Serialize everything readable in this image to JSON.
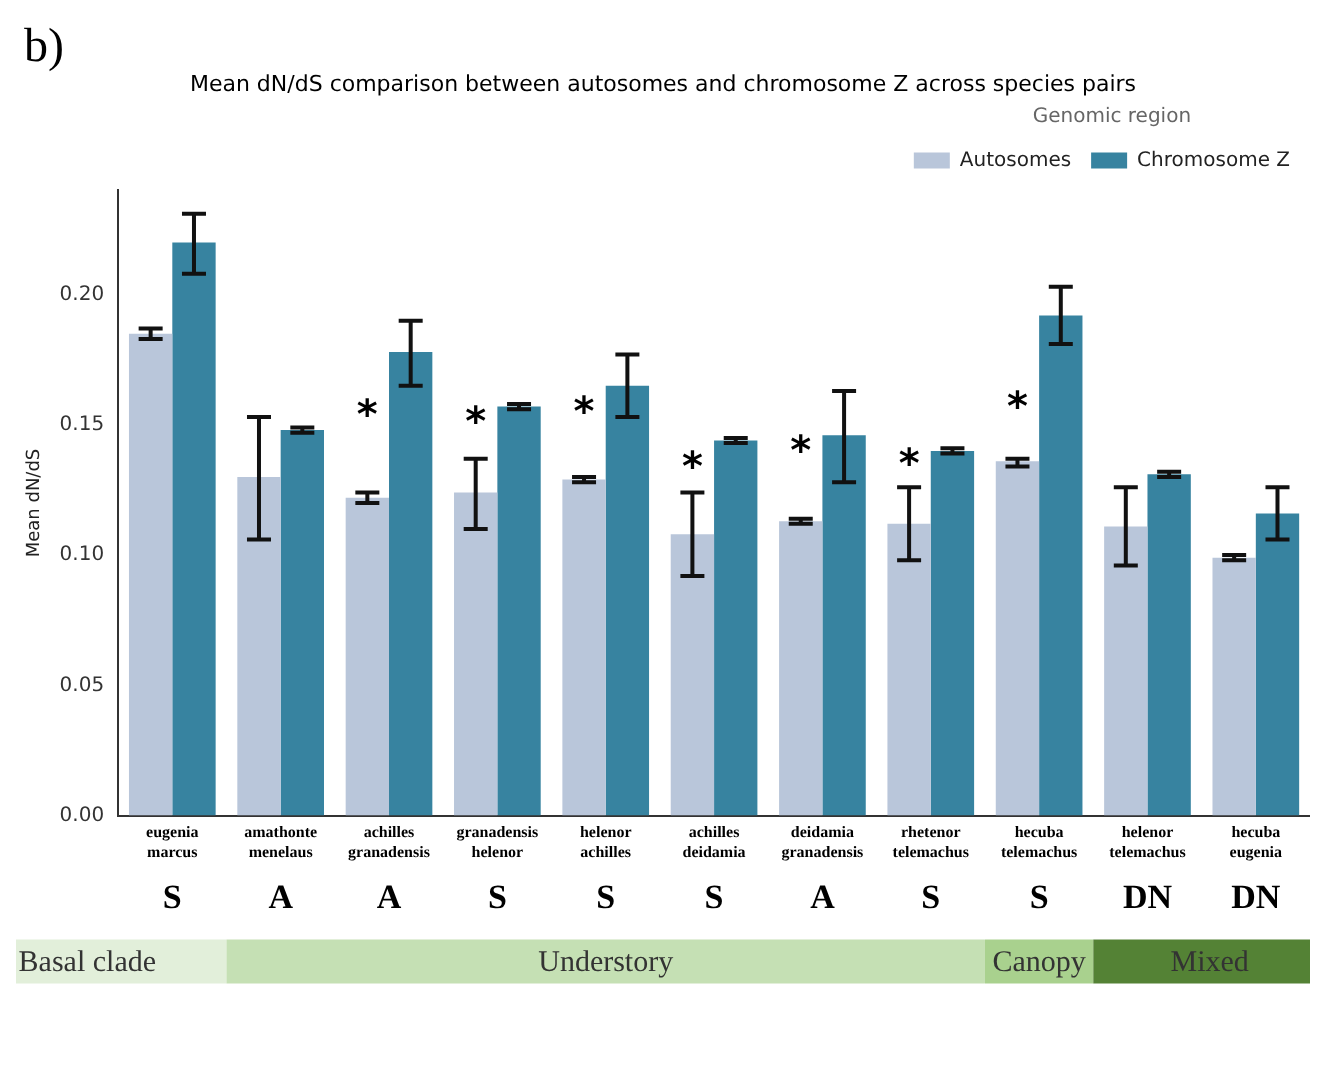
{
  "chart_data": {
    "type": "bar",
    "title": "Mean dN/dS comparison between autosomes and chromosome Z across species pairs",
    "ylabel": "Mean dN/dS",
    "legend_title": "Genomic region",
    "categories": [
      "eugenia marcus",
      "amathonte menelaus",
      "achilles granadensis",
      "granadensis helenor",
      "helenor achilles",
      "achilles deidamia",
      "deidamia granadensis",
      "rhetenor telemachus",
      "hecuba telemachus",
      "helenor telemachus",
      "hecuba eugenia"
    ],
    "series": [
      {
        "name": "Autosomes",
        "color": "#b9c6da",
        "values": [
          0.185,
          0.13,
          0.122,
          0.124,
          0.129,
          0.108,
          0.113,
          0.112,
          0.136,
          0.111,
          0.099
        ],
        "errors": [
          [
            0.183,
            0.187
          ],
          [
            0.106,
            0.153
          ],
          [
            0.12,
            0.124
          ],
          [
            0.11,
            0.137
          ],
          [
            0.128,
            0.13
          ],
          [
            0.092,
            0.124
          ],
          [
            0.112,
            0.114
          ],
          [
            0.098,
            0.126
          ],
          [
            0.134,
            0.137
          ],
          [
            0.096,
            0.126
          ],
          [
            0.098,
            0.1
          ]
        ]
      },
      {
        "name": "Chromosome Z",
        "color": "#3783a0",
        "values": [
          0.22,
          0.148,
          0.178,
          0.157,
          0.165,
          0.144,
          0.146,
          0.14,
          0.192,
          0.131,
          0.116
        ],
        "errors": [
          [
            0.208,
            0.231
          ],
          [
            0.147,
            0.149
          ],
          [
            0.165,
            0.19
          ],
          [
            0.156,
            0.158
          ],
          [
            0.153,
            0.177
          ],
          [
            0.143,
            0.145
          ],
          [
            0.128,
            0.163
          ],
          [
            0.139,
            0.141
          ],
          [
            0.181,
            0.203
          ],
          [
            0.13,
            0.132
          ],
          [
            0.106,
            0.126
          ]
        ]
      }
    ],
    "ylim": [
      0,
      0.24
    ],
    "yticks": [
      {
        "value": 0,
        "label": "0.00"
      },
      {
        "value": 0.05,
        "label": "0.05"
      },
      {
        "value": 0.1,
        "label": "0.10"
      },
      {
        "value": 0.15,
        "label": "0.15"
      },
      {
        "value": 0.2,
        "label": "0.20"
      }
    ],
    "grid": false,
    "legend": "top right",
    "annotations": [
      "b)",
      {
        "text": "*",
        "x": "achilles granadensis",
        "y": 0.156
      },
      {
        "text": "*",
        "x": "granadensis helenor",
        "y": 0.153
      },
      {
        "text": "*",
        "x": "helenor achilles",
        "y": 0.157
      },
      {
        "text": "*",
        "x": "achilles deidamia",
        "y": 0.136
      },
      {
        "text": "*",
        "x": "deidamia granadensis",
        "y": 0.142
      },
      {
        "text": "*",
        "x": "rhetenor telemachus",
        "y": 0.137
      },
      {
        "text": "*",
        "x": "hecuba telemachus",
        "y": 0.159
      },
      "S",
      "A",
      "A",
      "S",
      "S",
      "S",
      "A",
      "S",
      "S",
      "DN",
      "DN",
      "Basal clade",
      "Understory",
      "Canopy",
      "Mixed"
    ]
  }
}
